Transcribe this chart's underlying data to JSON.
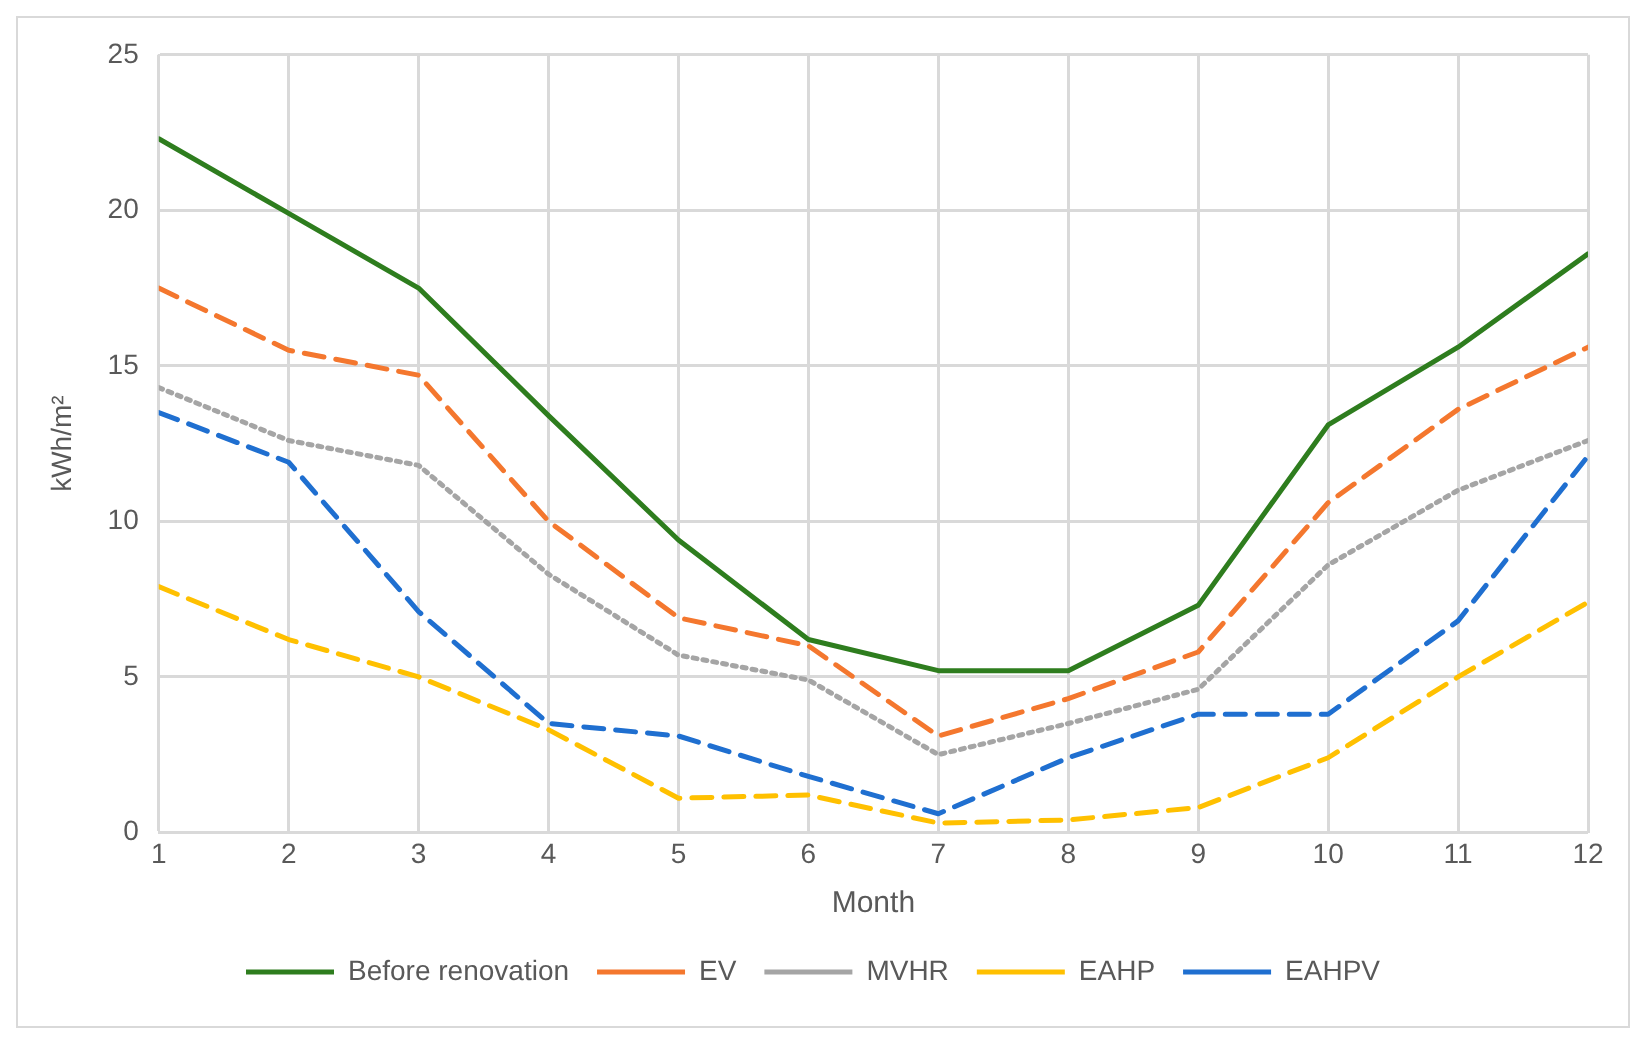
{
  "chart_data": {
    "type": "line",
    "xlabel": "Month",
    "ylabel": "kWh/m²",
    "x": [
      1,
      2,
      3,
      4,
      5,
      6,
      7,
      8,
      9,
      10,
      11,
      12
    ],
    "xlim": [
      1,
      12
    ],
    "xticks": [
      1,
      2,
      3,
      4,
      5,
      6,
      7,
      8,
      9,
      10,
      11,
      12
    ],
    "ylim": [
      0,
      25
    ],
    "yticks": [
      0,
      5,
      10,
      15,
      20,
      25
    ],
    "grid": true,
    "legend": "bottom",
    "marker": "none",
    "series": [
      {
        "name": "Before renovation",
        "color": "#2e7d1e",
        "line_style": "solid",
        "values": [
          22.3,
          19.9,
          17.5,
          13.4,
          9.4,
          6.2,
          5.2,
          5.2,
          7.3,
          13.1,
          15.6,
          18.6
        ]
      },
      {
        "name": "EV",
        "color": "#f4772e",
        "line_style": "dashed",
        "values": [
          17.5,
          15.5,
          14.7,
          10.0,
          6.9,
          6.0,
          3.1,
          4.3,
          5.8,
          10.6,
          13.6,
          15.6
        ]
      },
      {
        "name": "MVHR",
        "color": "#a5a5a5",
        "line_style": "dotted",
        "values": [
          14.3,
          12.6,
          11.8,
          8.3,
          5.7,
          4.9,
          2.5,
          3.5,
          4.6,
          8.6,
          11.0,
          12.6
        ]
      },
      {
        "name": "EAHP",
        "color": "#ffc000",
        "line_style": "dashed",
        "values": [
          7.9,
          6.2,
          5.0,
          3.3,
          1.1,
          1.2,
          0.3,
          0.4,
          0.8,
          2.4,
          5.0,
          7.4
        ]
      },
      {
        "name": "EAHPV",
        "color": "#1f6fd0",
        "line_style": "dashed",
        "values": [
          13.5,
          11.9,
          7.1,
          3.5,
          3.1,
          1.8,
          0.6,
          2.4,
          3.8,
          3.8,
          6.8,
          12.1
        ]
      }
    ]
  }
}
